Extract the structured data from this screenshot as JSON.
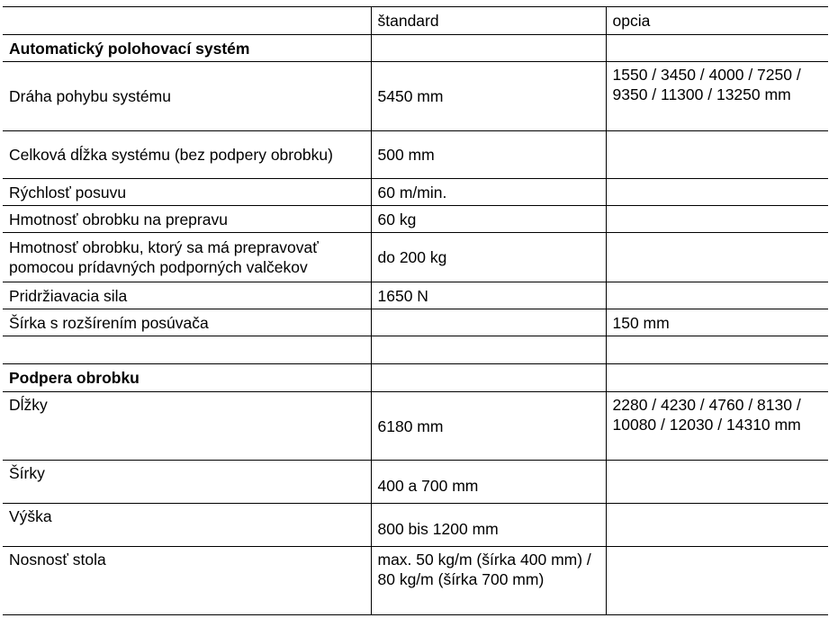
{
  "header": {
    "col1": "",
    "col2": "štandard",
    "col3": "opcia"
  },
  "sections": [
    {
      "title": "Automatický polohovací systém",
      "rows": [
        {
          "label": "Dráha pohybu systému",
          "standard": "5450 mm",
          "option": "1550 / 3450 / 4000 / 7250 / 9350 / 11300 / 13250 mm"
        },
        {
          "label": "Celková dĺžka systému (bez podpery obrobku)",
          "standard": "500 mm",
          "option": ""
        },
        {
          "label": "Rýchlosť posuvu",
          "standard": "60 m/min.",
          "option": ""
        },
        {
          "label": "Hmotnosť obrobku na prepravu",
          "standard": "60 kg",
          "option": ""
        },
        {
          "label": "Hmotnosť obrobku, ktorý sa má prepravovať pomocou prídavných podporných valčekov",
          "standard": "do 200 kg",
          "option": ""
        },
        {
          "label": "Pridržiavacia sila",
          "standard": "1650 N",
          "option": ""
        },
        {
          "label": "Šírka s rozšírením posúvača",
          "standard": "",
          "option": "150 mm"
        }
      ]
    },
    {
      "title": "Podpera obrobku",
      "rows": [
        {
          "label": "Dĺžky",
          "standard": "6180 mm",
          "option": "2280 / 4230 / 4760 / 8130 / 10080 / 12030 / 14310 mm"
        },
        {
          "label": "Šírky",
          "standard": "400 a 700 mm",
          "option": ""
        },
        {
          "label": "Výška",
          "standard": "800 bis 1200 mm",
          "option": ""
        },
        {
          "label": "Nosnosť stola",
          "standard": "max. 50 kg/m (šírka 400 mm) / 80 kg/m (šírka 700 mm)",
          "option": ""
        }
      ]
    }
  ]
}
